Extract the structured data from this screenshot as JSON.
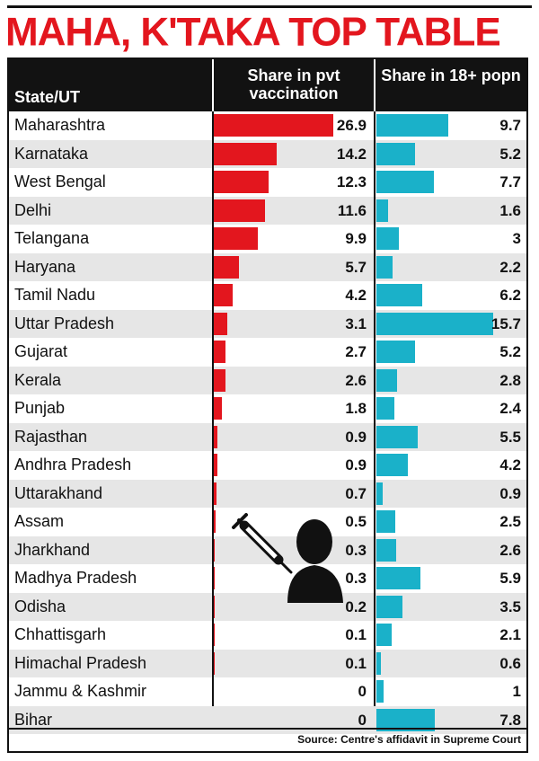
{
  "title": "MAHA, K'TAKA TOP TABLE",
  "source": "Source: Centre's affidavit in Supreme Court",
  "colors": {
    "title": "#e3161e",
    "pvt_bar": "#e3161e",
    "pop_bar": "#1ab1c9",
    "alt_row": "#e6e6e6"
  },
  "icons": [
    "syringe-icon",
    "person-icon"
  ],
  "chart_data": {
    "type": "bar",
    "title": "MAHA, K'TAKA TOP TABLE",
    "columns": [
      "State/UT",
      "Share in pvt vaccination",
      "Share in 18+ popn"
    ],
    "categories": [
      "Maharashtra",
      "Karnataka",
      "West Bengal",
      "Delhi",
      "Telangana",
      "Haryana",
      "Tamil Nadu",
      "Uttar Pradesh",
      "Gujarat",
      "Kerala",
      "Punjab",
      "Rajasthan",
      "Andhra Pradesh",
      "Uttarakhand",
      "Assam",
      "Jharkhand",
      "Madhya Pradesh",
      "Odisha",
      "Chhattisgarh",
      "Himachal Pradesh",
      "Jammu & Kashmir",
      "Bihar"
    ],
    "series": [
      {
        "name": "Share in pvt vaccination",
        "values": [
          "26.9",
          "14.2",
          "12.3",
          "11.6",
          "9.9",
          "5.7",
          "4.2",
          "3.1",
          "2.7",
          "2.6",
          "1.8",
          "0.9",
          "0.9",
          "0.7",
          "0.5",
          "0.3",
          "0.3",
          "0.2",
          "0.1",
          "0.1",
          "0",
          "0"
        ]
      },
      {
        "name": "Share in 18+ popn",
        "values": [
          "9.7",
          "5.2",
          "7.7",
          "1.6",
          "3",
          "2.2",
          "6.2",
          "15.7",
          "5.2",
          "2.8",
          "2.4",
          "5.5",
          "4.2",
          "0.9",
          "2.5",
          "2.6",
          "5.9",
          "3.5",
          "2.1",
          "0.6",
          "1",
          "7.8"
        ]
      }
    ],
    "source": "Source: Centre's affidavit in Supreme Court"
  }
}
